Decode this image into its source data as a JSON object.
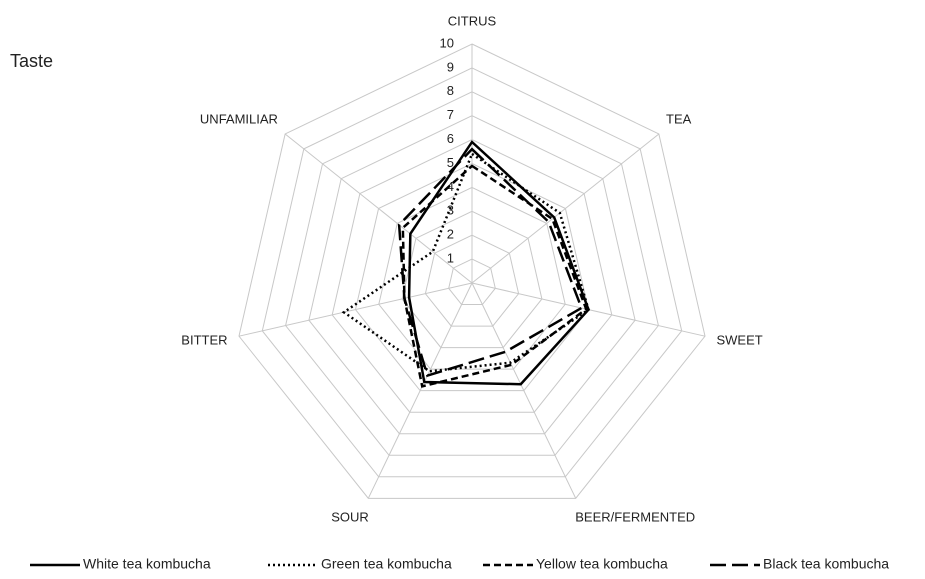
{
  "chart_data": {
    "type": "radar",
    "title": "Taste",
    "categories": [
      "CITRUS",
      "TEA",
      "SWEET",
      "BEER/FERMENTED",
      "SOUR",
      "BITTER",
      "UNFAMILIAR"
    ],
    "ylim": [
      0,
      10
    ],
    "yticks": [
      1,
      2,
      3,
      4,
      5,
      6,
      7,
      8,
      9,
      10
    ],
    "grid": true,
    "series": [
      {
        "name": "White tea kombucha",
        "color": "#000000",
        "dash": "solid",
        "values": [
          5.9,
          4.4,
          5.0,
          4.7,
          4.6,
          2.7,
          3.3
        ]
      },
      {
        "name": "Green tea kombucha",
        "color": "#000000",
        "dash": "dotted",
        "values": [
          5.4,
          4.7,
          5.0,
          3.7,
          4.1,
          5.5,
          2.1
        ]
      },
      {
        "name": "Yellow tea kombucha",
        "color": "#000000",
        "dash": "dashed",
        "values": [
          4.9,
          4.3,
          4.9,
          3.8,
          4.8,
          2.9,
          3.7
        ]
      },
      {
        "name": "Black tea kombucha",
        "color": "#000000",
        "dash": "longdash",
        "values": [
          5.6,
          4.1,
          4.7,
          3.2,
          4.3,
          2.9,
          3.9
        ]
      }
    ]
  }
}
